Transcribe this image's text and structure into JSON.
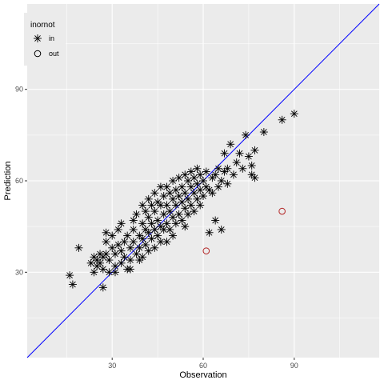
{
  "chart_data": {
    "type": "scatter",
    "title": "",
    "xlabel": "Observation",
    "ylabel": "Prediction",
    "xlim": [
      2,
      118
    ],
    "ylim": [
      2,
      118
    ],
    "x_ticks": [
      30,
      60,
      90
    ],
    "y_ticks": [
      30,
      60,
      90
    ],
    "grid": true,
    "panel_background": "#ebebeb",
    "reference_line": {
      "slope": 1,
      "intercept": 0,
      "color": "#0000ff"
    },
    "legend": {
      "title": "inornot",
      "placement": "top-left",
      "entries": [
        {
          "label": "in",
          "marker": "asterisk",
          "color": "#000000"
        },
        {
          "label": "out",
          "marker": "circle",
          "color": "#b22222"
        }
      ]
    },
    "series": [
      {
        "name": "in",
        "marker": "asterisk",
        "color": "#000000",
        "points": [
          [
            16,
            29
          ],
          [
            17,
            26
          ],
          [
            19,
            38
          ],
          [
            23,
            33
          ],
          [
            24,
            35
          ],
          [
            24,
            30
          ],
          [
            25,
            32
          ],
          [
            25,
            34
          ],
          [
            26,
            36
          ],
          [
            26,
            33
          ],
          [
            27,
            35
          ],
          [
            27,
            31
          ],
          [
            27,
            25
          ],
          [
            28,
            43
          ],
          [
            28,
            40
          ],
          [
            28,
            36
          ],
          [
            29,
            34
          ],
          [
            29,
            30
          ],
          [
            30,
            42
          ],
          [
            30,
            38
          ],
          [
            31,
            36
          ],
          [
            31,
            32
          ],
          [
            31,
            30
          ],
          [
            32,
            44
          ],
          [
            32,
            39
          ],
          [
            33,
            46
          ],
          [
            33,
            37
          ],
          [
            33,
            33
          ],
          [
            34,
            40
          ],
          [
            34,
            35
          ],
          [
            35,
            31
          ],
          [
            35,
            42
          ],
          [
            36,
            38
          ],
          [
            36,
            34
          ],
          [
            36,
            31
          ],
          [
            37,
            47
          ],
          [
            37,
            44
          ],
          [
            37,
            40
          ],
          [
            38,
            36
          ],
          [
            38,
            49
          ],
          [
            39,
            42
          ],
          [
            39,
            38
          ],
          [
            39,
            34
          ],
          [
            40,
            52
          ],
          [
            40,
            46
          ],
          [
            40,
            41
          ],
          [
            40,
            35
          ],
          [
            41,
            50
          ],
          [
            41,
            44
          ],
          [
            41,
            39
          ],
          [
            42,
            54
          ],
          [
            42,
            48
          ],
          [
            42,
            43
          ],
          [
            42,
            37
          ],
          [
            43,
            52
          ],
          [
            43,
            46
          ],
          [
            43,
            41
          ],
          [
            44,
            56
          ],
          [
            44,
            50
          ],
          [
            44,
            44
          ],
          [
            44,
            38
          ],
          [
            45,
            53
          ],
          [
            45,
            47
          ],
          [
            45,
            42
          ],
          [
            46,
            58
          ],
          [
            46,
            52
          ],
          [
            46,
            45
          ],
          [
            46,
            40
          ],
          [
            47,
            55
          ],
          [
            47,
            49
          ],
          [
            47,
            44
          ],
          [
            48,
            58
          ],
          [
            48,
            52
          ],
          [
            48,
            46
          ],
          [
            48,
            40
          ],
          [
            49,
            56
          ],
          [
            49,
            50
          ],
          [
            49,
            44
          ],
          [
            50,
            60
          ],
          [
            50,
            54
          ],
          [
            50,
            48
          ],
          [
            50,
            42
          ],
          [
            51,
            57
          ],
          [
            51,
            52
          ],
          [
            51,
            46
          ],
          [
            52,
            61
          ],
          [
            52,
            55
          ],
          [
            52,
            49
          ],
          [
            53,
            58
          ],
          [
            53,
            53
          ],
          [
            53,
            47
          ],
          [
            54,
            62
          ],
          [
            54,
            56
          ],
          [
            54,
            51
          ],
          [
            54,
            45
          ],
          [
            55,
            60
          ],
          [
            55,
            54
          ],
          [
            55,
            49
          ],
          [
            56,
            63
          ],
          [
            56,
            58
          ],
          [
            56,
            52
          ],
          [
            57,
            61
          ],
          [
            57,
            56
          ],
          [
            57,
            50
          ],
          [
            58,
            64
          ],
          [
            58,
            59
          ],
          [
            58,
            54
          ],
          [
            59,
            62
          ],
          [
            59,
            57
          ],
          [
            59,
            52
          ],
          [
            60,
            60
          ],
          [
            60,
            55
          ],
          [
            61,
            63
          ],
          [
            61,
            58
          ],
          [
            62,
            57
          ],
          [
            62,
            43
          ],
          [
            63,
            61
          ],
          [
            63,
            56
          ],
          [
            64,
            47
          ],
          [
            64,
            62
          ],
          [
            65,
            64
          ],
          [
            65,
            58
          ],
          [
            66,
            44
          ],
          [
            66,
            60
          ],
          [
            67,
            63
          ],
          [
            67,
            69
          ],
          [
            68,
            59
          ],
          [
            68,
            64
          ],
          [
            69,
            72
          ],
          [
            70,
            62
          ],
          [
            71,
            66
          ],
          [
            72,
            69
          ],
          [
            73,
            64
          ],
          [
            74,
            75
          ],
          [
            75,
            68
          ],
          [
            76,
            62
          ],
          [
            76,
            65
          ],
          [
            77,
            70
          ],
          [
            77,
            61
          ],
          [
            80,
            76
          ],
          [
            86,
            80
          ],
          [
            90,
            82
          ]
        ]
      },
      {
        "name": "out",
        "marker": "circle",
        "color": "#b22222",
        "points": [
          [
            61,
            37
          ],
          [
            86,
            50
          ]
        ]
      }
    ]
  }
}
